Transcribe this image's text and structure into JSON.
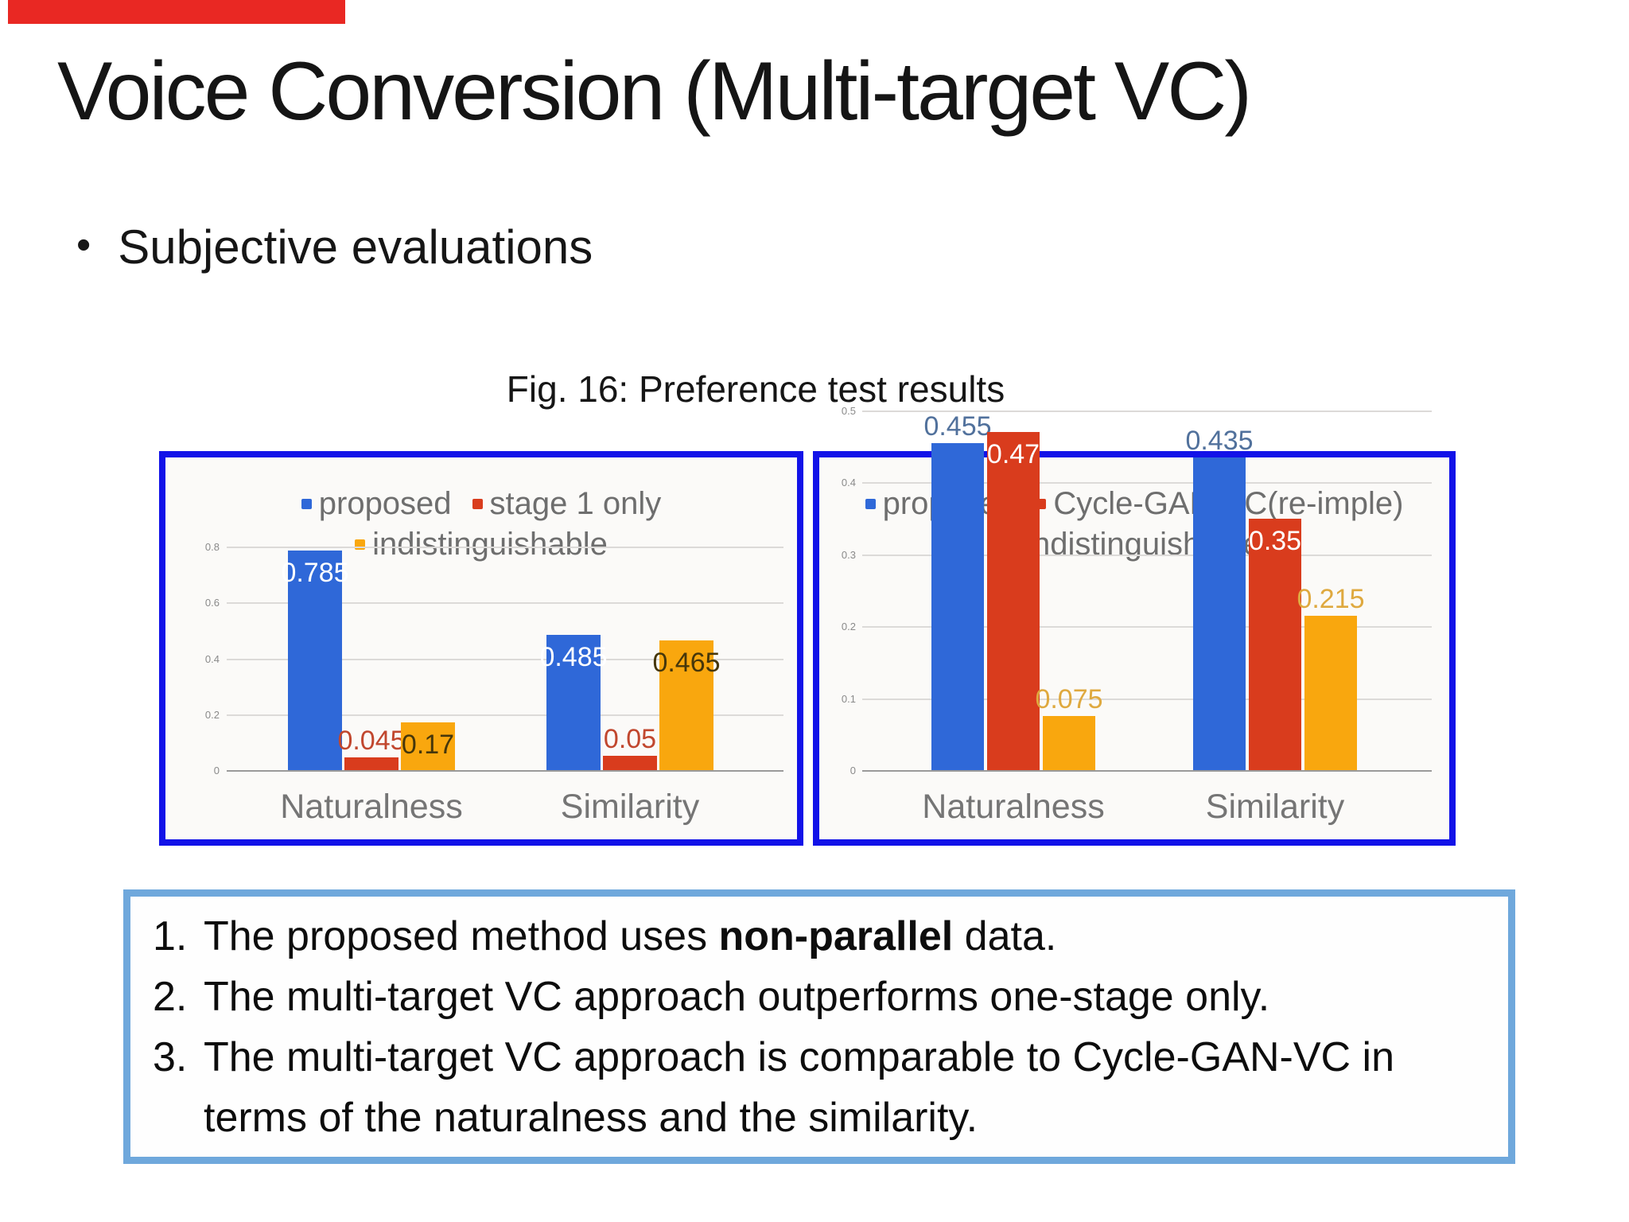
{
  "slide": {
    "title": "Voice Conversion (Multi-target VC)",
    "bullet_marker": "•",
    "bullet": "Subjective evaluations",
    "figure_caption": "Fig. 16: Preference test results"
  },
  "colors": {
    "top_bar_red": "#e92823",
    "chart_border_blue": "#1212e8",
    "notes_border_blue": "#6fa8dc",
    "series_blue": "#2f68d8",
    "series_red": "#d93c1d",
    "series_orange": "#f9a70e",
    "legend_text_gray": "#6e6e6e",
    "axis_text_gray": "#757575"
  },
  "chart_data": [
    {
      "type": "bar",
      "title": "",
      "categories": [
        "Naturalness",
        "Similarity"
      ],
      "series": [
        {
          "name": "proposed",
          "color": "#2f68d8",
          "values": [
            0.785,
            0.485
          ],
          "label_position": "inside",
          "label_color": "#ffffff"
        },
        {
          "name": "stage 1 only",
          "color": "#d93c1d",
          "values": [
            0.045,
            0.05
          ],
          "label_position": "above",
          "label_color": "#c1472e"
        },
        {
          "name": "indistinguishable",
          "color": "#f9a70e",
          "values": [
            0.17,
            0.465
          ],
          "label_position": "inside",
          "label_color": "#46370b"
        }
      ],
      "legend_rows": [
        [
          "proposed",
          "stage 1 only"
        ],
        [
          "indistinguishable"
        ]
      ],
      "ylim": [
        0,
        0.8
      ],
      "yticks": [
        0,
        0.2,
        0.4,
        0.6,
        0.8
      ],
      "grid": true,
      "legend_position": "top"
    },
    {
      "type": "bar",
      "title": "",
      "categories": [
        "Naturalness",
        "Similarity"
      ],
      "series": [
        {
          "name": "proposed",
          "color": "#2f68d8",
          "values": [
            0.455,
            0.435
          ],
          "label_position": "above",
          "label_color": "#51719c"
        },
        {
          "name": "Cycle-GAN-VC(re-imple)",
          "color": "#d93c1d",
          "values": [
            0.47,
            0.35
          ],
          "label_position": "inside",
          "label_color": "#ffffff"
        },
        {
          "name": "indistinguishable",
          "color": "#f9a70e",
          "values": [
            0.075,
            0.215
          ],
          "label_position": "above",
          "label_color": "#dfa93f"
        }
      ],
      "legend_rows": [
        [
          "proposed",
          "Cycle-GAN-VC(re-imple)"
        ],
        [
          "indistinguishable"
        ]
      ],
      "ylim": [
        0,
        0.5
      ],
      "yticks": [
        0,
        0.1,
        0.2,
        0.3,
        0.4,
        0.5
      ],
      "grid": true,
      "legend_position": "top"
    }
  ],
  "notes": {
    "items": [
      {
        "num": "1.",
        "pre": "The proposed method uses ",
        "bold": "non-parallel",
        "post": " data."
      },
      {
        "num": "2.",
        "pre": "The multi-target VC approach outperforms one-stage only.",
        "bold": "",
        "post": ""
      },
      {
        "num": "3.",
        "pre": "The multi-target VC approach is comparable to Cycle-GAN-VC in terms of the naturalness and the similarity.",
        "bold": "",
        "post": ""
      }
    ]
  }
}
